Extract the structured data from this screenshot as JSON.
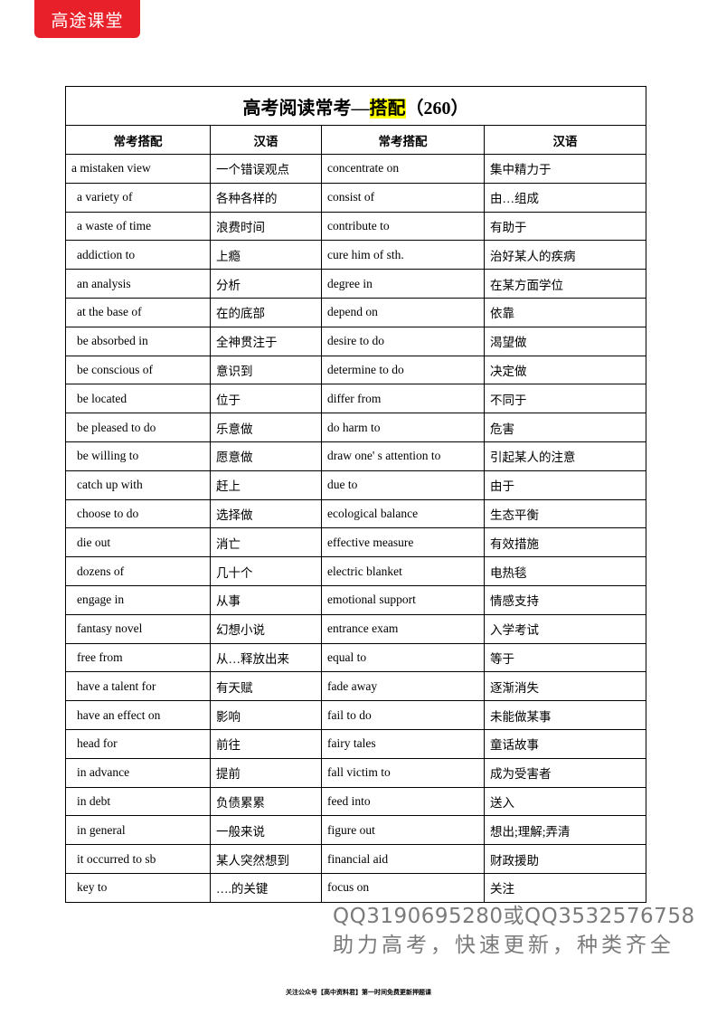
{
  "logo": "高途课堂",
  "title_prefix": "高考阅读常考—",
  "title_highlight": "搭配",
  "title_suffix": "（260）",
  "headers": [
    "常考搭配",
    "汉语",
    "常考搭配",
    "汉语"
  ],
  "rows": [
    [
      "a mistaken view",
      "一个错误观点",
      "concentrate on",
      "集中精力于"
    ],
    [
      "a variety of",
      "各种各样的",
      "consist of",
      "由…组成"
    ],
    [
      "a waste of time",
      "浪费时间",
      "contribute to",
      "有助于"
    ],
    [
      "addiction to",
      "上瘾",
      "cure him of sth.",
      "治好某人的疾病"
    ],
    [
      "an analysis",
      "分析",
      "degree in",
      "在某方面学位"
    ],
    [
      "at the base of",
      "在的底部",
      "depend on",
      "依靠"
    ],
    [
      "be absorbed in",
      "全神贯注于",
      "desire to do",
      "渴望做"
    ],
    [
      "be conscious of",
      "意识到",
      "determine to do",
      "决定做"
    ],
    [
      "be located",
      "位于",
      "differ from",
      "不同于"
    ],
    [
      "be pleased to do",
      "乐意做",
      "do harm to",
      "危害"
    ],
    [
      "be willing to",
      "愿意做",
      "draw one' s attention to",
      "引起某人的注意"
    ],
    [
      "catch up with",
      "赶上",
      "due to",
      "由于"
    ],
    [
      "choose to do",
      "选择做",
      "ecological balance",
      "生态平衡"
    ],
    [
      "die out",
      "消亡",
      "effective measure",
      "有效措施"
    ],
    [
      "dozens of",
      "几十个",
      "electric blanket",
      "电热毯"
    ],
    [
      "engage in",
      "从事",
      "emotional support",
      "情感支持"
    ],
    [
      "fantasy novel",
      "幻想小说",
      "entrance exam",
      "入学考试"
    ],
    [
      "free from",
      "从…释放出来",
      "equal to",
      "等于"
    ],
    [
      "have a talent for",
      "有天赋",
      "fade away",
      "逐渐消失"
    ],
    [
      "have an effect on",
      "影响",
      "fail to do",
      "未能做某事"
    ],
    [
      "head for",
      "前往",
      "fairy tales",
      "童话故事"
    ],
    [
      "in advance",
      "提前",
      "fall victim to",
      "成为受害者"
    ],
    [
      "in debt",
      "负债累累",
      "feed into",
      "送入"
    ],
    [
      "in general",
      "一般来说",
      "figure out",
      "想出;理解;弄清"
    ],
    [
      "it occurred to sb",
      "某人突然想到",
      "financial aid",
      "财政援助"
    ],
    [
      "key to",
      "….的关键",
      "focus on",
      "关注"
    ]
  ],
  "watermark_line1": "QQ3190695280或QQ3532576758",
  "watermark_line2": "助力高考，快速更新，种类齐全",
  "footer": "关注公众号【高中资料君】第一时间免费更新押题课"
}
